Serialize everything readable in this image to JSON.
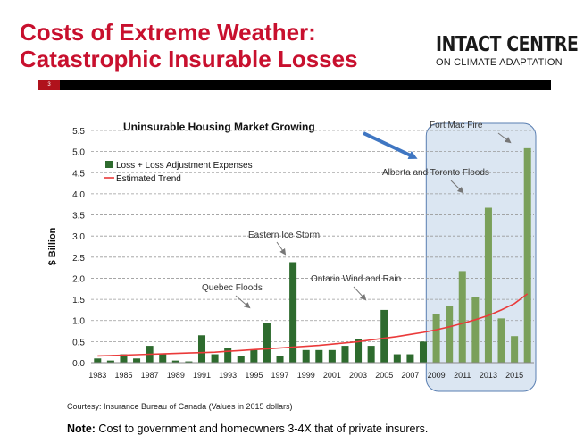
{
  "slide": {
    "title_line1": "Costs of Extreme Weather:",
    "title_line2": "Catastrophic Insurable Losses",
    "logo_main": "INTACT CENTRE",
    "logo_sub": "ON CLIMATE ADAPTATION",
    "slide_number": "3",
    "source": "Courtesy:  Insurance  Bureau of Canada (Values in 2015 dollars)",
    "note_label": "Note:",
    "note_text": " Cost to government and homeowners 3-4X that of private insurers."
  },
  "colors": {
    "title": "#c8102e",
    "bar_dark": "#2e6b2e",
    "bar_light": "#7aa05a",
    "trend": "#ea3a3a",
    "highlight_fill": "#dbe6f2",
    "highlight_stroke": "#5a7fb2",
    "arrow": "#3f76c2"
  },
  "chart_data": {
    "type": "bar",
    "x": [
      1983,
      1984,
      1985,
      1986,
      1987,
      1988,
      1989,
      1990,
      1991,
      1992,
      1993,
      1994,
      1995,
      1996,
      1997,
      1998,
      1999,
      2000,
      2001,
      2002,
      2003,
      2004,
      2005,
      2006,
      2007,
      2008,
      2009,
      2010,
      2011,
      2012,
      2013,
      2014,
      2015,
      2016
    ],
    "x_tick_labels": [
      "1983",
      "1985",
      "1987",
      "1989",
      "1991",
      "1993",
      "1995",
      "1997",
      "1999",
      "2001",
      "2003",
      "2005",
      "2007",
      "2009",
      "2011",
      "2013",
      "2015"
    ],
    "series": [
      {
        "name": "Loss + Loss Adjustment Expenses",
        "type": "bar",
        "values": [
          0.1,
          0.05,
          0.2,
          0.1,
          0.4,
          0.2,
          0.05,
          0.03,
          0.65,
          0.2,
          0.35,
          0.15,
          0.3,
          0.95,
          0.15,
          2.38,
          0.3,
          0.3,
          0.3,
          0.4,
          0.55,
          0.4,
          1.25,
          0.2,
          0.2,
          0.5,
          1.15,
          1.35,
          2.17,
          1.55,
          3.67,
          1.05,
          0.63,
          5.08
        ]
      },
      {
        "name": "Estimated Trend",
        "type": "line",
        "values": [
          0.16,
          0.17,
          0.18,
          0.19,
          0.2,
          0.21,
          0.22,
          0.23,
          0.24,
          0.25,
          0.27,
          0.29,
          0.31,
          0.33,
          0.35,
          0.37,
          0.39,
          0.41,
          0.44,
          0.47,
          0.5,
          0.54,
          0.58,
          0.62,
          0.67,
          0.72,
          0.78,
          0.85,
          0.93,
          1.02,
          1.12,
          1.25,
          1.4,
          1.63
        ]
      }
    ],
    "highlight_from_year": 2009,
    "ylabel": "$ Billion",
    "ylim": [
      0,
      5.5
    ],
    "y_ticks": [
      "0.0",
      "0.5",
      "1.0",
      "1.5",
      "2.0",
      "2.5",
      "3.0",
      "3.5",
      "4.0",
      "4.5",
      "5.0",
      "5.5"
    ],
    "grid": "horizontal dashed",
    "legend_position": "top-left",
    "annotations": {
      "market": "Uninsurable Housing Market Growing",
      "fort_mac": "Fort Mac Fire",
      "alberta": "Alberta and Toronto Floods",
      "ice_storm": "Eastern Ice Storm",
      "ontario": "Ontario Wind and Rain",
      "quebec": "Quebec Floods"
    }
  }
}
